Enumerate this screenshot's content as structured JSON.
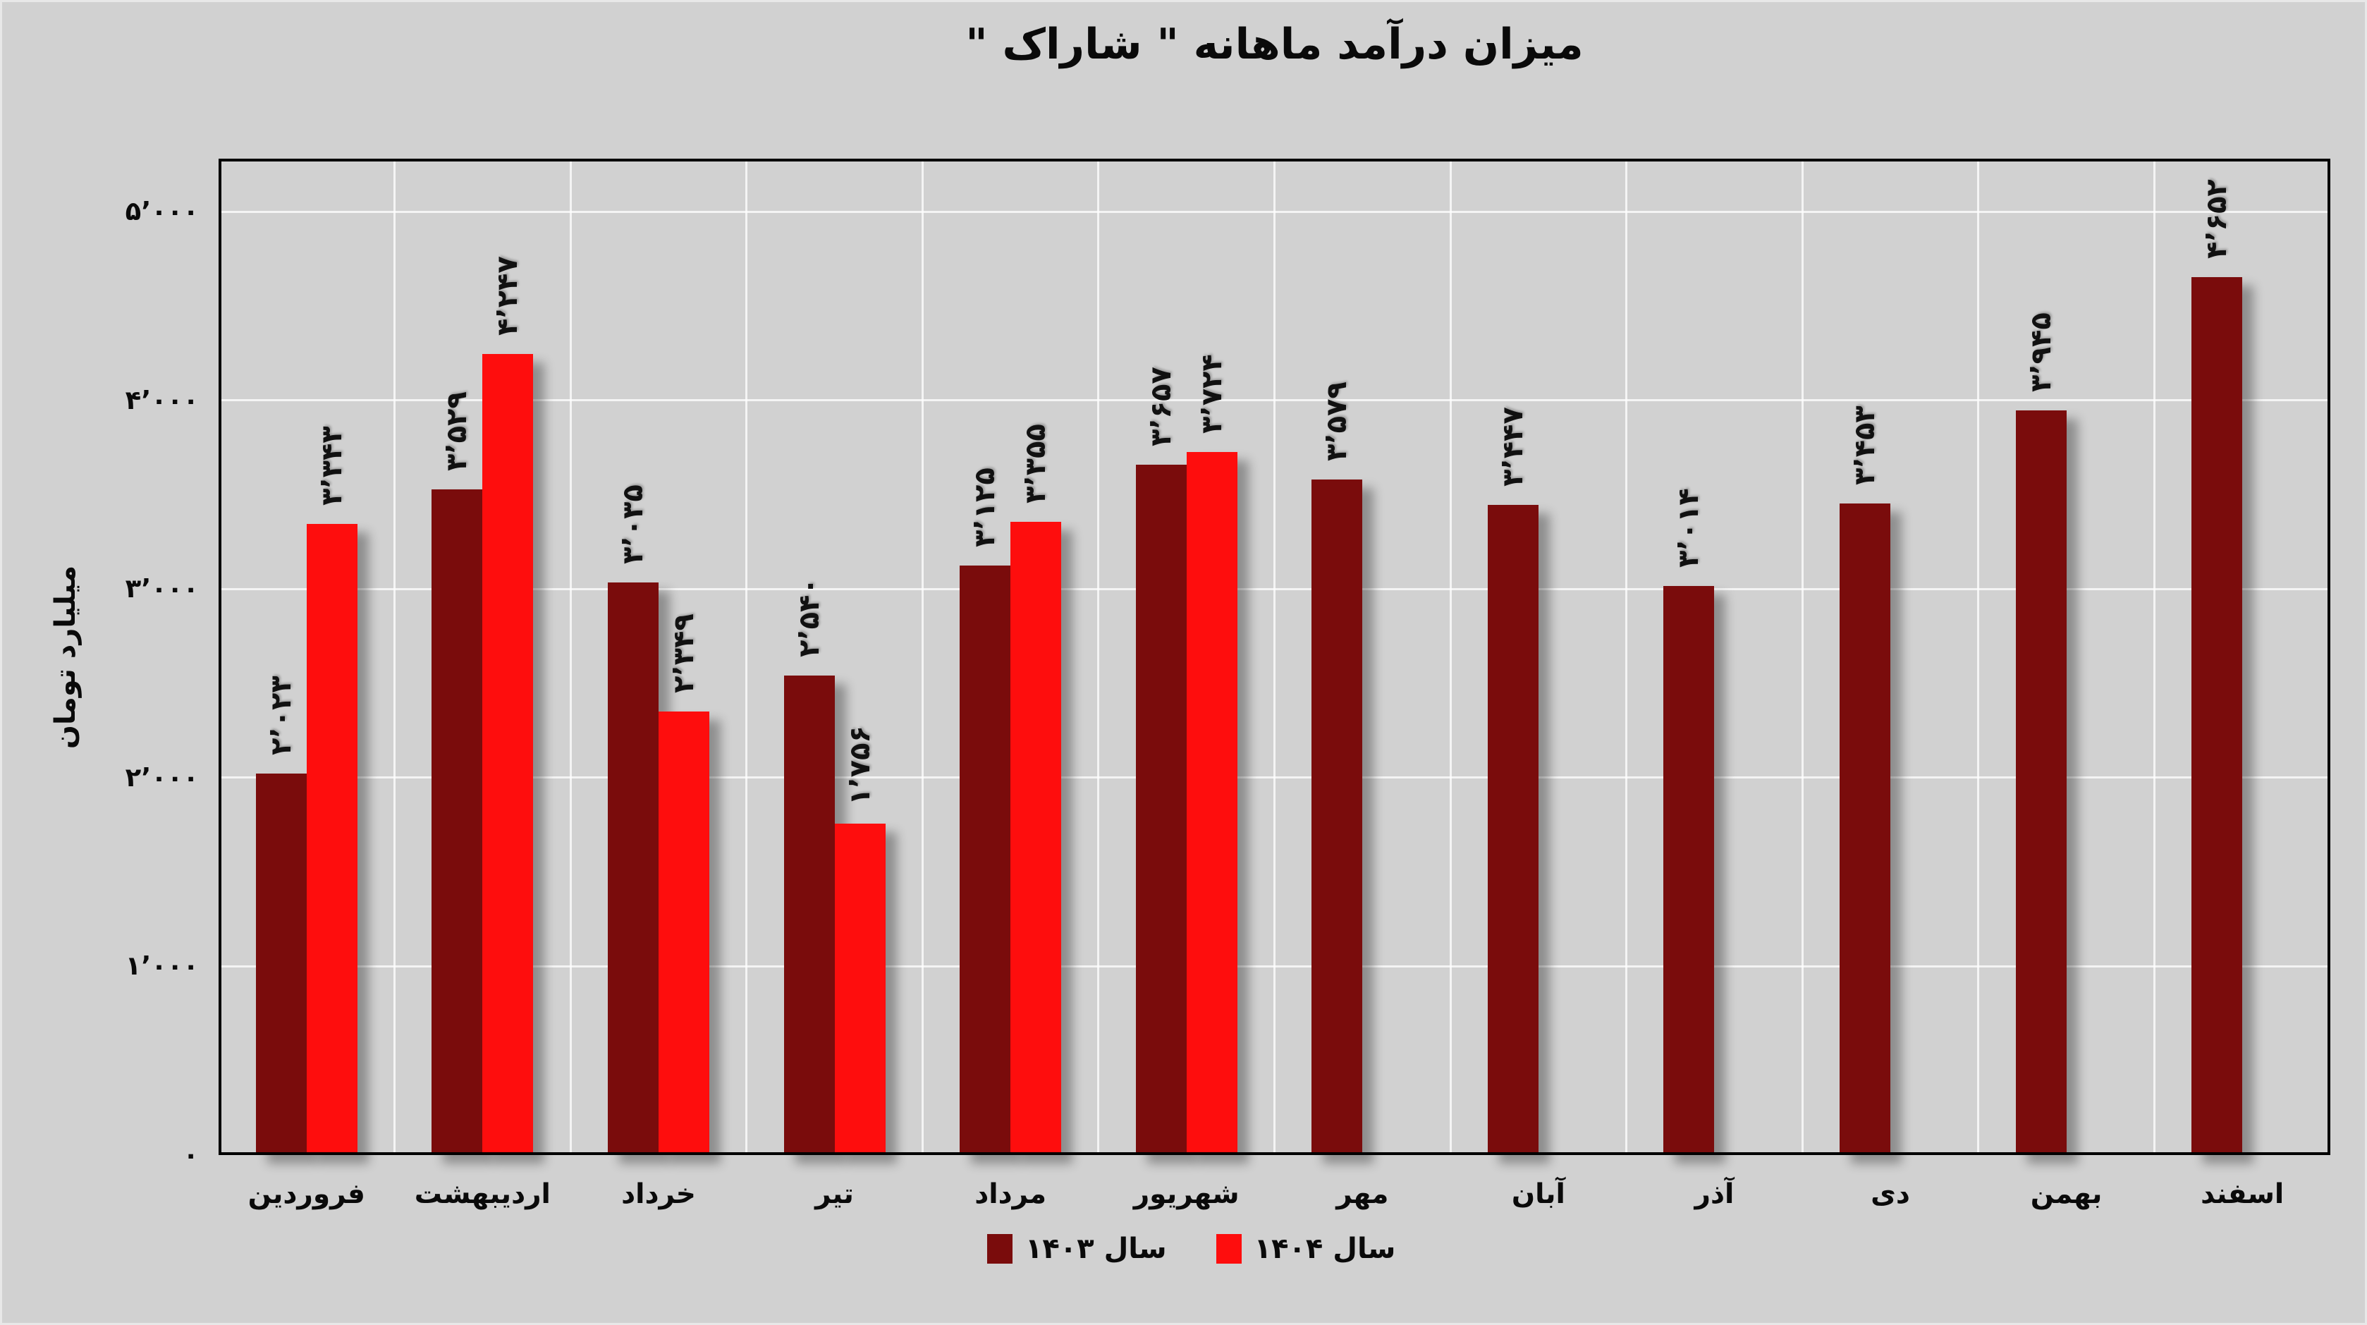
{
  "title": "میزان درآمد ماهانه \" شاراک \"",
  "y_axis_title": "میلیارد تومان",
  "legend": [
    {
      "key": "1403",
      "label": "سال ۱۴۰۳",
      "color": "#7a0c0c"
    },
    {
      "key": "1404",
      "label": "سال ۱۴۰۴",
      "color": "#fe0d0d"
    }
  ],
  "colors": {
    "background": "#d1d1d1",
    "gridline": "#ffffff",
    "axis": "#000000",
    "series_1403": "#7a0c0c",
    "series_1404": "#fe0d0d"
  },
  "chart_data": {
    "type": "bar",
    "title": "میزان درآمد ماهانه \" شاراک \"",
    "xlabel": "",
    "ylabel": "میلیارد تومان",
    "ylim": [
      0,
      5280
    ],
    "grid": true,
    "legend_position": "bottom",
    "categories": [
      "فروردین",
      "اردیبهشت",
      "خرداد",
      "تیر",
      "مرداد",
      "شهریور",
      "مهر",
      "آبان",
      "آذر",
      "دی",
      "بهمن",
      "اسفند"
    ],
    "y_ticks": [
      {
        "value": 0,
        "label": "۰"
      },
      {
        "value": 1000,
        "label": "۱٬۰۰۰"
      },
      {
        "value": 2000,
        "label": "۲٬۰۰۰"
      },
      {
        "value": 3000,
        "label": "۳٬۰۰۰"
      },
      {
        "value": 4000,
        "label": "۴٬۰۰۰"
      },
      {
        "value": 5000,
        "label": "۵٬۰۰۰"
      }
    ],
    "series": [
      {
        "key": "1403",
        "name": "سال ۱۴۰۳",
        "color": "#7a0c0c",
        "values": [
          2023,
          3529,
          3035,
          2540,
          3125,
          3657,
          3579,
          3447,
          3014,
          3453,
          3945,
          4652
        ],
        "labels": [
          "۲٬۰۲۳",
          "۳٬۵۲۹",
          "۳٬۰۳۵",
          "۲٬۵۴۰",
          "۳٬۱۲۵",
          "۳٬۶۵۷",
          "۳٬۵۷۹",
          "۳٬۴۴۷",
          "۳٬۰۱۴",
          "۳٬۴۵۳",
          "۳٬۹۴۵",
          "۴٬۶۵۲"
        ]
      },
      {
        "key": "1404",
        "name": "سال ۱۴۰۴",
        "color": "#fe0d0d",
        "values": [
          3343,
          4247,
          2349,
          1756,
          3355,
          3724,
          null,
          null,
          null,
          null,
          null,
          null
        ],
        "labels": [
          "۳٬۳۴۳",
          "۴٬۲۴۷",
          "۲٬۳۴۹",
          "۱٬۷۵۶",
          "۳٬۳۵۵",
          "۳٬۷۲۴",
          null,
          null,
          null,
          null,
          null,
          null
        ]
      }
    ]
  }
}
